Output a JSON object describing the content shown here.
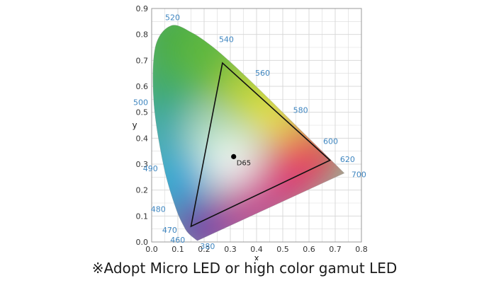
{
  "chart_data": {
    "type": "scatter",
    "title": "",
    "xlabel": "x",
    "ylabel": "y",
    "xlim": [
      0.0,
      0.8
    ],
    "ylim": [
      0.0,
      0.9
    ],
    "grid": true,
    "x_ticks": [
      "0.0",
      "0.1",
      "0.2",
      "0.3",
      "0.4",
      "0.5",
      "0.6",
      "0.7",
      "0.8"
    ],
    "y_ticks": [
      "0.0",
      "0.1",
      "0.2",
      "0.3",
      "0.4",
      "0.5",
      "0.6",
      "0.7",
      "0.8",
      "0.9"
    ],
    "spectral_locus": [
      {
        "label": "380",
        "x": 0.1741,
        "y": 0.005
      },
      {
        "label": "460",
        "x": 0.144,
        "y": 0.0297
      },
      {
        "label": "470",
        "x": 0.1241,
        "y": 0.0578
      },
      {
        "label": "480",
        "x": 0.0913,
        "y": 0.1327
      },
      {
        "label": "490",
        "x": 0.0454,
        "y": 0.295
      },
      {
        "label": "500",
        "x": 0.0082,
        "y": 0.5384
      },
      {
        "label": "",
        "x": 0.0139,
        "y": 0.7502
      },
      {
        "label": "520",
        "x": 0.0743,
        "y": 0.8338
      },
      {
        "label": "",
        "x": 0.1547,
        "y": 0.8059
      },
      {
        "label": "540",
        "x": 0.2296,
        "y": 0.7543
      },
      {
        "label": "",
        "x": 0.3016,
        "y": 0.6923
      },
      {
        "label": "560",
        "x": 0.3731,
        "y": 0.6245
      },
      {
        "label": "",
        "x": 0.4441,
        "y": 0.5547
      },
      {
        "label": "580",
        "x": 0.5125,
        "y": 0.4866
      },
      {
        "label": "",
        "x": 0.5752,
        "y": 0.4242
      },
      {
        "label": "600",
        "x": 0.627,
        "y": 0.3725
      },
      {
        "label": "",
        "x": 0.6658,
        "y": 0.334
      },
      {
        "label": "620",
        "x": 0.6915,
        "y": 0.3083
      },
      {
        "label": "",
        "x": 0.7079,
        "y": 0.292
      },
      {
        "label": "700",
        "x": 0.7347,
        "y": 0.2653
      }
    ],
    "gamut_triangle": {
      "red": {
        "x": 0.68,
        "y": 0.315
      },
      "green": {
        "x": 0.27,
        "y": 0.69
      },
      "blue": {
        "x": 0.15,
        "y": 0.06
      }
    },
    "white_point": {
      "label": "D65",
      "x": 0.3127,
      "y": 0.329
    },
    "colors": {
      "wavelength_label": "#3f86c0",
      "triangle": "#111111",
      "grid": "#d9d9d9"
    }
  },
  "caption": "※Adopt Micro LED or high color gamut LED"
}
